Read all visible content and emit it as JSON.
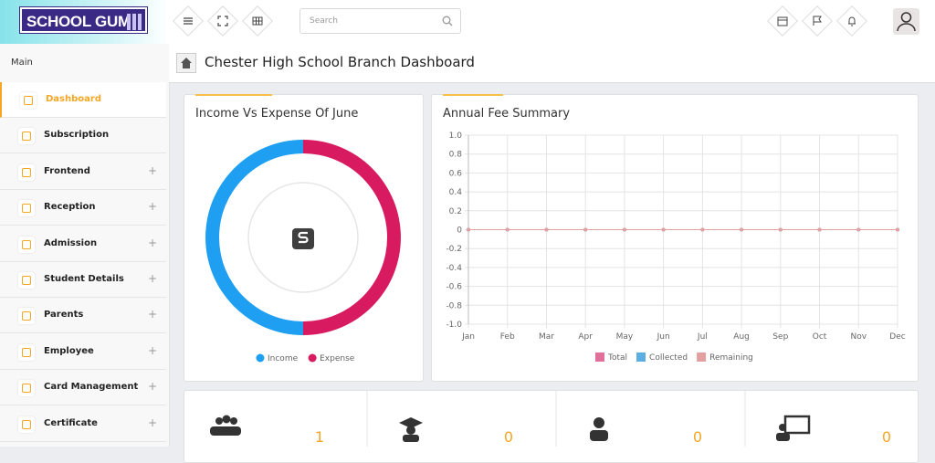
{
  "header": {
    "logo": "SCHOOL GUM",
    "search_placeholder": "Search"
  },
  "sidebar": {
    "section": "Main",
    "items": [
      {
        "label": "Dashboard",
        "active": true,
        "expandable": false
      },
      {
        "label": "Subscription",
        "active": false,
        "expandable": false
      },
      {
        "label": "Frontend",
        "active": false,
        "expandable": true
      },
      {
        "label": "Reception",
        "active": false,
        "expandable": true
      },
      {
        "label": "Admission",
        "active": false,
        "expandable": true
      },
      {
        "label": "Student Details",
        "active": false,
        "expandable": true
      },
      {
        "label": "Parents",
        "active": false,
        "expandable": true
      },
      {
        "label": "Employee",
        "active": false,
        "expandable": true
      },
      {
        "label": "Card Management",
        "active": false,
        "expandable": true
      },
      {
        "label": "Certificate",
        "active": false,
        "expandable": true
      }
    ]
  },
  "page_title": "Chester High School Branch Dashboard",
  "income_chart": {
    "type": "doughnut",
    "title": "Income Vs Expense Of June",
    "series": [
      {
        "name": "Income",
        "color": "#1e9ff2",
        "value": 50
      },
      {
        "name": "Expense",
        "color": "#d81b60",
        "value": 50
      }
    ]
  },
  "fee_chart": {
    "type": "line",
    "title": "Annual Fee Summary",
    "categories": [
      "Jan",
      "Feb",
      "Mar",
      "Apr",
      "May",
      "Jun",
      "Jul",
      "Aug",
      "Sep",
      "Oct",
      "Nov",
      "Dec"
    ],
    "series": [
      {
        "name": "Total",
        "color": "#e0709a",
        "values": [
          0,
          0,
          0,
          0,
          0,
          0,
          0,
          0,
          0,
          0,
          0,
          0
        ]
      },
      {
        "name": "Collected",
        "color": "#5aaee0",
        "values": [
          0,
          0,
          0,
          0,
          0,
          0,
          0,
          0,
          0,
          0,
          0,
          0
        ]
      },
      {
        "name": "Remaining",
        "color": "#e2a0a0",
        "values": [
          0,
          0,
          0,
          0,
          0,
          0,
          0,
          0,
          0,
          0,
          0,
          0
        ]
      }
    ],
    "ylim": [
      -1,
      1
    ],
    "yticks": [
      {
        "value": 1,
        "label": "1.0"
      },
      0.8,
      0.6,
      0.4,
      0.2,
      0,
      -0.2,
      -0.4,
      -0.6,
      -0.8,
      {
        "value": -1,
        "label": "-1.0"
      }
    ],
    "grid": true
  },
  "stats": [
    {
      "value": 1
    },
    {
      "value": 0
    },
    {
      "value": 0
    },
    {
      "value": 0
    }
  ]
}
